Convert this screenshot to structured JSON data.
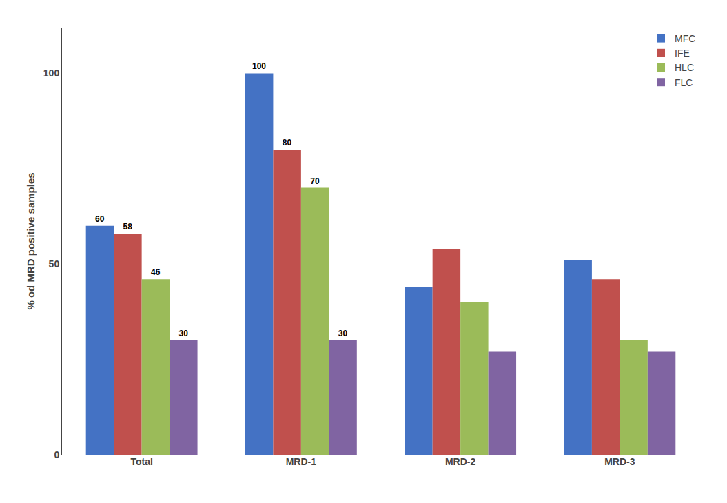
{
  "chart_data": {
    "type": "bar",
    "categories": [
      "Total",
      "MRD-1",
      "MRD-2",
      "MRD-3"
    ],
    "series": [
      {
        "name": "MFC",
        "color": "#4472C4",
        "values": [
          60,
          100,
          44,
          51
        ],
        "value_labels": [
          "60",
          "100",
          null,
          null
        ]
      },
      {
        "name": "IFE",
        "color": "#C0504D",
        "values": [
          58,
          80,
          54,
          46
        ],
        "value_labels": [
          "58",
          "80",
          null,
          null
        ]
      },
      {
        "name": "HLC",
        "color": "#9BBB59",
        "values": [
          46,
          70,
          40,
          30
        ],
        "value_labels": [
          "46",
          "70",
          null,
          null
        ]
      },
      {
        "name": "FLC",
        "color": "#8064A2",
        "values": [
          30,
          30,
          27,
          27
        ],
        "value_labels": [
          "30",
          "30",
          null,
          null
        ]
      }
    ],
    "y_label": "% od MRD positive samples",
    "ylim": [
      0,
      112
    ],
    "yticks": [
      0,
      50,
      100
    ],
    "grid": false,
    "legend": "upper right",
    "data_labels": true
  }
}
